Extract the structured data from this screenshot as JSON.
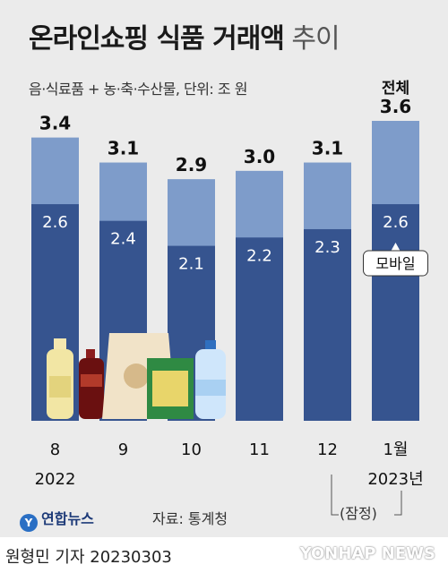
{
  "header": {
    "title_main": "온라인쇼핑 식품 거래액",
    "title_sub": " 추이",
    "subtitle": "음·식료품 + 농·축·수산물, 단위: 조 원"
  },
  "chart_data": {
    "type": "bar",
    "categories": [
      "8",
      "9",
      "10",
      "11",
      "12",
      "1월"
    ],
    "year_labels": [
      "2022",
      "",
      "",
      "",
      "",
      "2023년"
    ],
    "series": [
      {
        "name": "전체",
        "values": [
          3.4,
          3.1,
          2.9,
          3.0,
          3.1,
          3.6
        ]
      },
      {
        "name": "모바일",
        "values": [
          2.6,
          2.4,
          2.1,
          2.2,
          2.3,
          2.6
        ]
      }
    ],
    "total_label": "전체",
    "mobile_label": "모바일",
    "colors": {
      "total": "#7e9cca",
      "mobile": "#36548f",
      "background": "#ebebeb"
    }
  },
  "footer": {
    "logo": "연합뉴스",
    "logo_mark": "Y",
    "source": "자료: 통계청",
    "prelim_note": "(잠정)",
    "reporter": "원형민 기자  20230303",
    "watermark": "YONHAP NEWS"
  }
}
